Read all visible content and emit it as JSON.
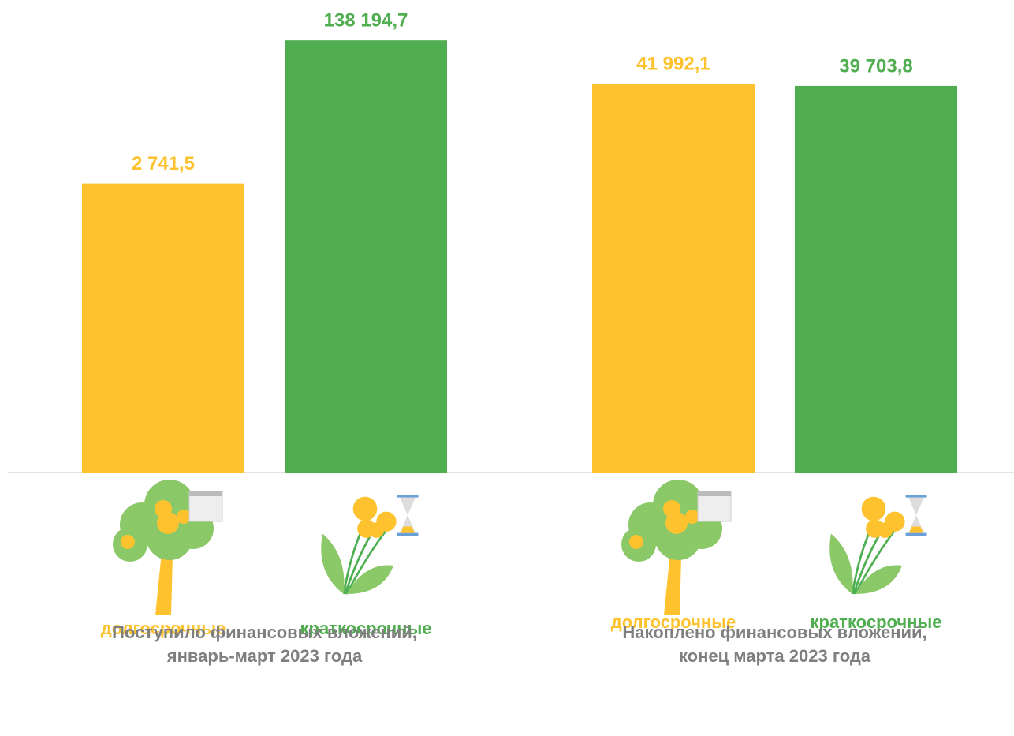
{
  "chart_data": {
    "type": "bar",
    "log_scale": true,
    "ylim": [
      1,
      400000
    ],
    "categories": [
      [
        "Поступило финансовых вложений,",
        "январь-март 2023 года"
      ],
      [
        "Накоплено финансовых вложений,",
        "конец марта 2023 года"
      ]
    ],
    "series": [
      {
        "name": "долгосрочные",
        "color": "#fdc22e",
        "values": [
          2741.5,
          41992.1
        ],
        "value_labels": [
          "2 741,5",
          "41 992,1"
        ]
      },
      {
        "name": "краткосрочные",
        "color": "#50ae51",
        "values": [
          138194.7,
          39703.8
        ],
        "value_labels": [
          "138 194,7",
          "39 703,8"
        ]
      }
    ]
  }
}
